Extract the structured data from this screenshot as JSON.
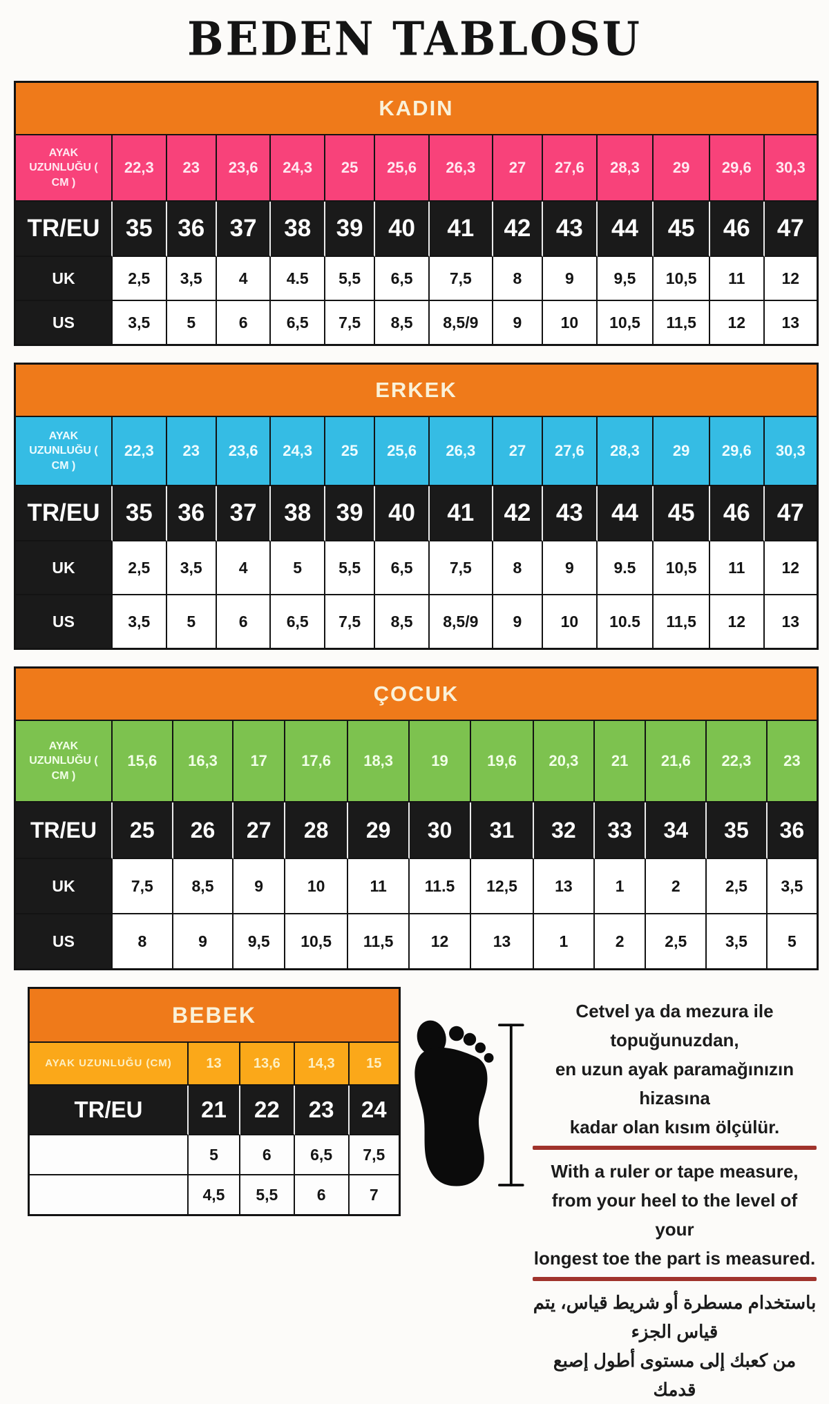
{
  "title": "BEDEN TABLOSU",
  "row_labels": {
    "eu": "TR/EU",
    "uk": "UK",
    "us": "US"
  },
  "sections": {
    "kadin": {
      "header": "KADIN",
      "foot_label": "AYAK UZUNLUĞU ( CM )",
      "cm": [
        "22,3",
        "23",
        "23,6",
        "24,3",
        "25",
        "25,6",
        "26,3",
        "27",
        "27,6",
        "28,3",
        "29",
        "29,6",
        "30,3"
      ],
      "eu": [
        "35",
        "36",
        "37",
        "38",
        "39",
        "40",
        "41",
        "42",
        "43",
        "44",
        "45",
        "46",
        "47"
      ],
      "uk": [
        "2,5",
        "3,5",
        "4",
        "4.5",
        "5,5",
        "6,5",
        "7,5",
        "8",
        "9",
        "9,5",
        "10,5",
        "11",
        "12"
      ],
      "us": [
        "3,5",
        "5",
        "6",
        "6,5",
        "7,5",
        "8,5",
        "8,5/9",
        "9",
        "10",
        "10,5",
        "11,5",
        "12",
        "13"
      ]
    },
    "erkek": {
      "header": "ERKEK",
      "foot_label": "AYAK UZUNLUĞU ( CM )",
      "cm": [
        "22,3",
        "23",
        "23,6",
        "24,3",
        "25",
        "25,6",
        "26,3",
        "27",
        "27,6",
        "28,3",
        "29",
        "29,6",
        "30,3"
      ],
      "eu": [
        "35",
        "36",
        "37",
        "38",
        "39",
        "40",
        "41",
        "42",
        "43",
        "44",
        "45",
        "46",
        "47"
      ],
      "uk": [
        "2,5",
        "3,5",
        "4",
        "5",
        "5,5",
        "6,5",
        "7,5",
        "8",
        "9",
        "9.5",
        "10,5",
        "11",
        "12"
      ],
      "us": [
        "3,5",
        "5",
        "6",
        "6,5",
        "7,5",
        "8,5",
        "8,5/9",
        "9",
        "10",
        "10.5",
        "11,5",
        "12",
        "13"
      ]
    },
    "cocuk": {
      "header": "ÇOCUK",
      "foot_label": "AYAK UZUNLUĞU ( CM )",
      "cm": [
        "15,6",
        "16,3",
        "17",
        "17,6",
        "18,3",
        "19",
        "19,6",
        "20,3",
        "21",
        "21,6",
        "22,3",
        "23"
      ],
      "eu": [
        "25",
        "26",
        "27",
        "28",
        "29",
        "30",
        "31",
        "32",
        "33",
        "34",
        "35",
        "36"
      ],
      "uk": [
        "7,5",
        "8,5",
        "9",
        "10",
        "11",
        "11.5",
        "12,5",
        "13",
        "1",
        "2",
        "2,5",
        "3,5"
      ],
      "us": [
        "8",
        "9",
        "9,5",
        "10,5",
        "11,5",
        "12",
        "13",
        "1",
        "2",
        "2,5",
        "3,5",
        "5"
      ]
    },
    "bebek": {
      "header": "BEBEK",
      "foot_label": "AYAK UZUNLUĞU (CM)",
      "cm": [
        "13",
        "13,6",
        "14,3",
        "15"
      ],
      "eu": [
        "21",
        "22",
        "23",
        "24"
      ],
      "us": [
        "5",
        "6",
        "6,5",
        "7,5"
      ],
      "uk": [
        "4,5",
        "5,5",
        "6",
        "7"
      ]
    }
  },
  "instructions": {
    "tr": [
      "Cetvel ya da mezura ile topuğunuzdan,",
      "en uzun ayak paramağınızın hizasına",
      "kadar olan kısım ölçülür."
    ],
    "en": [
      "With a ruler or tape measure,",
      "from your heel to the level of your",
      "longest toe the part is measured."
    ],
    "ar": [
      "باستخدام مسطرة أو شريط قياس، يتم قياس الجزء",
      "من كعبك إلى مستوى أطول إصبع قدمك"
    ]
  },
  "colors": {
    "orange_header": "#ef7a1a",
    "kadin_pink": "#f8427a",
    "erkek_cyan": "#35bce4",
    "cocuk_green": "#7dc24f",
    "bebek_amber": "#fba819",
    "row_black": "#1a1a1a",
    "underline_red": "#a0332c",
    "header_text_cream": "#faf1d8"
  }
}
